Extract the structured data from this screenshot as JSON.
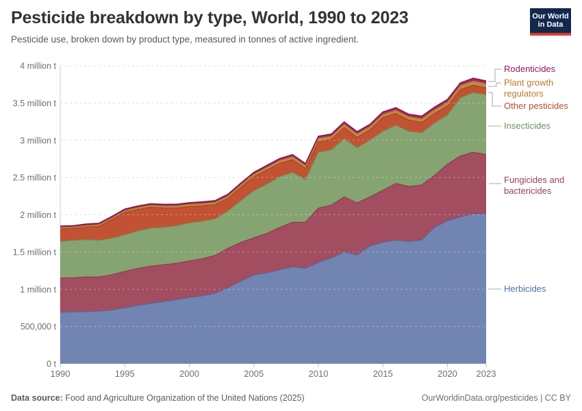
{
  "header": {
    "title": "Pesticide breakdown by type, World, 1990 to 2023",
    "subtitle": "Pesticide use, broken down by product type, measured in tonnes of active ingredient.",
    "logo": {
      "line1": "Our World",
      "line2": "in Data",
      "bg_color": "#12294d",
      "accent_color": "#dc3d33"
    }
  },
  "footer": {
    "source_label": "Data source:",
    "source_text": " Food and Agriculture Organization of the United Nations (2025)",
    "credit": "OurWorldinData.org/pesticides | CC BY"
  },
  "chart_data": {
    "type": "area",
    "stacked": true,
    "grid": "dashed-horizontal",
    "legend_position": "right",
    "x_label": "",
    "y_label": "",
    "units": "million tonnes of active ingredient",
    "x": [
      1990,
      1991,
      1992,
      1993,
      1994,
      1995,
      1996,
      1997,
      1998,
      1999,
      2000,
      2001,
      2002,
      2003,
      2004,
      2005,
      2006,
      2007,
      2008,
      2009,
      2010,
      2011,
      2012,
      2013,
      2014,
      2015,
      2016,
      2017,
      2018,
      2019,
      2020,
      2021,
      2022,
      2023
    ],
    "x_ticks": [
      1990,
      1995,
      2000,
      2005,
      2010,
      2015,
      2020,
      2023
    ],
    "y_axis": {
      "min": 0,
      "max": 4.0,
      "tick_step": 0.5,
      "tick_labels": [
        "0 t",
        "500,000 t",
        "1 million t",
        "1.5 million t",
        "2 million t",
        "2.5 million t",
        "3 million t",
        "3.5 million t",
        "4 million t"
      ]
    },
    "series": [
      {
        "id": "herbicides",
        "name": "Herbicides",
        "fill": "#7284b1",
        "border": "#55689a",
        "text_color": "#4f71ab",
        "values_million_t": [
          0.69,
          0.695,
          0.7,
          0.705,
          0.72,
          0.75,
          0.78,
          0.81,
          0.835,
          0.86,
          0.89,
          0.91,
          0.945,
          1.02,
          1.11,
          1.19,
          1.22,
          1.26,
          1.3,
          1.28,
          1.36,
          1.42,
          1.5,
          1.46,
          1.58,
          1.63,
          1.66,
          1.64,
          1.66,
          1.83,
          1.92,
          1.97,
          2.01,
          2.01
        ]
      },
      {
        "id": "fungicides",
        "name": "Fungicides and bactericides",
        "fill": "#a24d60",
        "border": "#8c3a4e",
        "text_color": "#9b3f55",
        "values_million_t": [
          0.46,
          0.46,
          0.465,
          0.46,
          0.475,
          0.49,
          0.5,
          0.5,
          0.495,
          0.49,
          0.49,
          0.5,
          0.51,
          0.53,
          0.52,
          0.5,
          0.53,
          0.57,
          0.6,
          0.62,
          0.73,
          0.71,
          0.74,
          0.7,
          0.66,
          0.7,
          0.76,
          0.74,
          0.74,
          0.7,
          0.76,
          0.82,
          0.83,
          0.8
        ]
      },
      {
        "id": "insecticides",
        "name": "Insecticides",
        "fill": "#86a471",
        "border": "#6f9158",
        "text_color": "#68945c",
        "values_million_t": [
          0.49,
          0.5,
          0.5,
          0.49,
          0.49,
          0.49,
          0.5,
          0.51,
          0.5,
          0.5,
          0.51,
          0.5,
          0.49,
          0.5,
          0.56,
          0.63,
          0.66,
          0.68,
          0.67,
          0.57,
          0.75,
          0.74,
          0.78,
          0.74,
          0.76,
          0.79,
          0.78,
          0.74,
          0.7,
          0.7,
          0.66,
          0.78,
          0.8,
          0.8
        ]
      },
      {
        "id": "other_pesticides",
        "name": "Other pesticides",
        "fill": "#c25233",
        "border": "#a83f23",
        "text_color": "#bc4b29",
        "values_million_t": [
          0.17,
          0.16,
          0.17,
          0.19,
          0.25,
          0.3,
          0.29,
          0.28,
          0.26,
          0.24,
          0.22,
          0.21,
          0.19,
          0.17,
          0.18,
          0.19,
          0.19,
          0.18,
          0.17,
          0.15,
          0.14,
          0.14,
          0.15,
          0.14,
          0.14,
          0.185,
          0.16,
          0.15,
          0.14,
          0.13,
          0.12,
          0.11,
          0.1,
          0.093
        ]
      },
      {
        "id": "plant_growth_regulators",
        "name": "Plant growth regulators",
        "fill": "#c08a3d",
        "border": "#a5742c",
        "text_color": "#b97c2a",
        "values_million_t": [
          0.02,
          0.02,
          0.021,
          0.022,
          0.023,
          0.025,
          0.026,
          0.027,
          0.028,
          0.029,
          0.03,
          0.03,
          0.031,
          0.032,
          0.033,
          0.034,
          0.036,
          0.038,
          0.04,
          0.04,
          0.045,
          0.044,
          0.046,
          0.045,
          0.044,
          0.042,
          0.044,
          0.046,
          0.048,
          0.05,
          0.052,
          0.054,
          0.056,
          0.056
        ]
      },
      {
        "id": "rodenticides",
        "name": "Rodenticides",
        "fill": "#a52868",
        "border": "#8b1256",
        "text_color": "#991363",
        "values_million_t": [
          0.018,
          0.018,
          0.019,
          0.019,
          0.02,
          0.02,
          0.021,
          0.021,
          0.022,
          0.022,
          0.022,
          0.023,
          0.023,
          0.024,
          0.024,
          0.025,
          0.026,
          0.026,
          0.027,
          0.027,
          0.028,
          0.029,
          0.03,
          0.03,
          0.031,
          0.032,
          0.033,
          0.034,
          0.035,
          0.035,
          0.036,
          0.036,
          0.037,
          0.037
        ]
      }
    ],
    "style": {
      "grid_color": "#dcdcdc",
      "grid_overlay_color": "rgba(255,255,255,0.35)",
      "axis_line_color": "#cccccc",
      "tick_color": "#bdbdbd",
      "axis_text_color": "#6e6e6e",
      "connector_color": "#bbbbbb"
    }
  }
}
